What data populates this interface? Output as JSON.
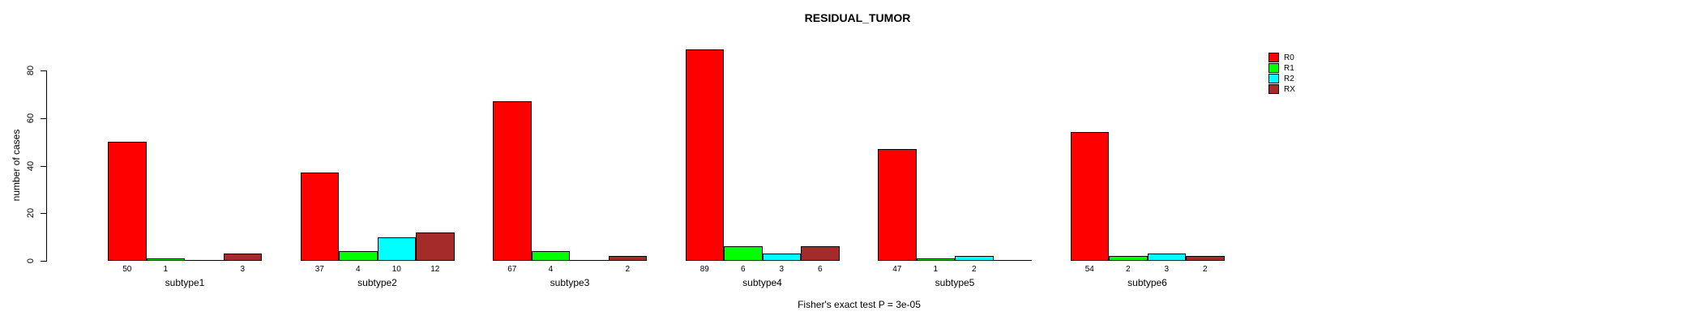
{
  "chart_data": {
    "type": "bar",
    "title": "RESIDUAL_TUMOR",
    "ylabel": "number of cases",
    "caption": "Fisher's exact test P = 3e-05",
    "categories": [
      "subtype1",
      "subtype2",
      "subtype3",
      "subtype4",
      "subtype5",
      "subtype6"
    ],
    "series": [
      {
        "name": "R0",
        "color": "#ff0000",
        "values": [
          50,
          37,
          67,
          89,
          47,
          54
        ]
      },
      {
        "name": "R1",
        "color": "#00ff00",
        "values": [
          1,
          4,
          4,
          6,
          1,
          2
        ]
      },
      {
        "name": "R2",
        "color": "#00ffff",
        "values": [
          0,
          10,
          0,
          3,
          2,
          3
        ]
      },
      {
        "name": "RX",
        "color": "#a52a2a",
        "values": [
          3,
          12,
          2,
          6,
          0,
          2
        ]
      }
    ],
    "bar_value_labels_shown": true,
    "zero_bars_drawn_as_flat_line": true,
    "yticks": [
      0,
      20,
      40,
      60,
      80
    ],
    "ylim": [
      0,
      80
    ],
    "grid": false,
    "legend": {
      "position": "top-right-inside",
      "entries": [
        {
          "label": "R0",
          "color": "#ff0000"
        },
        {
          "label": "R1",
          "color": "#00ff00"
        },
        {
          "label": "R2",
          "color": "#00ffff"
        },
        {
          "label": "RX",
          "color": "#a52a2a"
        }
      ]
    },
    "axis_color": "#000000",
    "background_color": "#ffffff"
  }
}
